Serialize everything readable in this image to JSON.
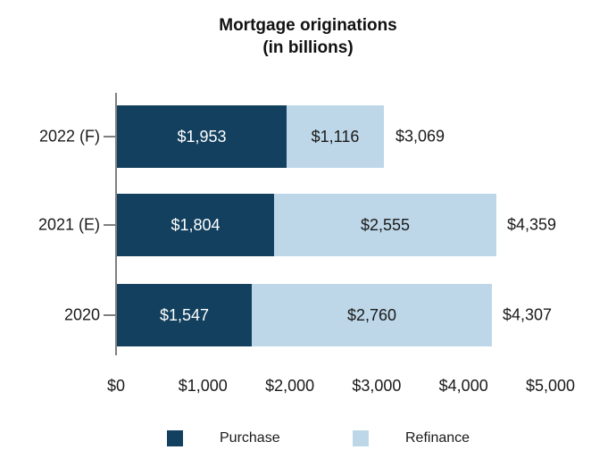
{
  "title": {
    "line1": "Mortgage originations",
    "line2": "(in billions)"
  },
  "chart_data": {
    "type": "bar",
    "orientation": "horizontal",
    "stacked": true,
    "title": "Mortgage originations (in billions)",
    "categories": [
      "2022 (F)",
      "2021 (E)",
      "2020"
    ],
    "series": [
      {
        "name": "Purchase",
        "color": "#12405e",
        "label_color": "#ffffff",
        "values": [
          1953,
          1804,
          1547
        ],
        "labels": [
          "$1,953",
          "$1,804",
          "$1,547"
        ]
      },
      {
        "name": "Refinance",
        "color": "#bdd7e8",
        "label_color": "#1a1a1a",
        "values": [
          1116,
          2555,
          2760
        ],
        "labels": [
          "$1,116",
          "$2,555",
          "$2,760"
        ]
      }
    ],
    "totals": [
      3069,
      4359,
      4307
    ],
    "total_labels": [
      "$3,069",
      "$4,359",
      "$4,307"
    ],
    "xlim": [
      0,
      5000
    ],
    "x_ticks": [
      {
        "value": 0,
        "label": "$0"
      },
      {
        "value": 1000,
        "label": "$1,000"
      },
      {
        "value": 2000,
        "label": "$2,000"
      },
      {
        "value": 3000,
        "label": "$3,000"
      },
      {
        "value": 4000,
        "label": "$4,000"
      },
      {
        "value": 5000,
        "label": "$5,000"
      }
    ],
    "legend": [
      {
        "label": "Purchase",
        "color": "#12405e"
      },
      {
        "label": "Refinance",
        "color": "#bdd7e8"
      }
    ],
    "legend_position": "bottom",
    "grid": false,
    "axis_color": "#7f7f7f",
    "text_color": "#1a1a1a"
  }
}
